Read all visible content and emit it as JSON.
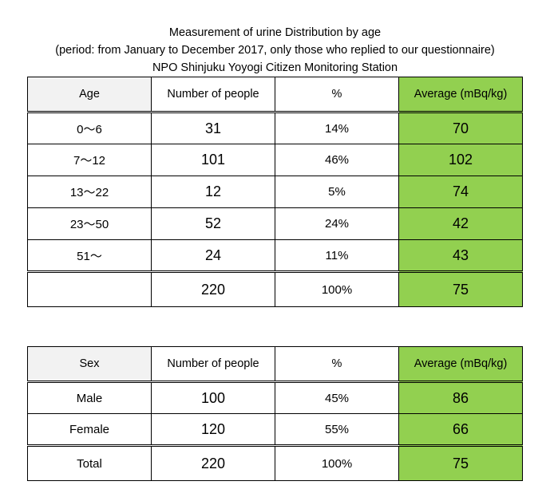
{
  "title": {
    "line1": "Measurement of urine Distribution by age",
    "line2": "(period: from January to December 2017, only those who replied to our questionnaire)",
    "line3": "NPO Shinjuku Yoyogi Citizen Monitoring Station"
  },
  "age_table": {
    "headers": [
      "Age",
      "Number of people",
      "%",
      "Average (mBq/kg)"
    ],
    "rows": [
      {
        "label": "0～6",
        "count": "31",
        "percent": "14%",
        "average": "70"
      },
      {
        "label": "7～12",
        "count": "101",
        "percent": "46%",
        "average": "102"
      },
      {
        "label": "13～22",
        "count": "12",
        "percent": "5%",
        "average": "74"
      },
      {
        "label": "23～50",
        "count": "52",
        "percent": "24%",
        "average": "42"
      },
      {
        "label": "51～",
        "count": "24",
        "percent": "11%",
        "average": "43"
      }
    ],
    "total": {
      "label": "",
      "count": "220",
      "percent": "100%",
      "average": "75"
    }
  },
  "sex_table": {
    "headers": [
      "Sex",
      "Number of people",
      "%",
      "Average (mBq/kg)"
    ],
    "rows": [
      {
        "label": "Male",
        "count": "100",
        "percent": "45%",
        "average": "86"
      },
      {
        "label": "Female",
        "count": "120",
        "percent": "55%",
        "average": "66"
      }
    ],
    "total": {
      "label": "Total",
      "count": "220",
      "percent": "100%",
      "average": "75"
    }
  },
  "colors": {
    "average_column": "#92d050",
    "label_header": "#f2f2f2",
    "border": "#000000"
  }
}
